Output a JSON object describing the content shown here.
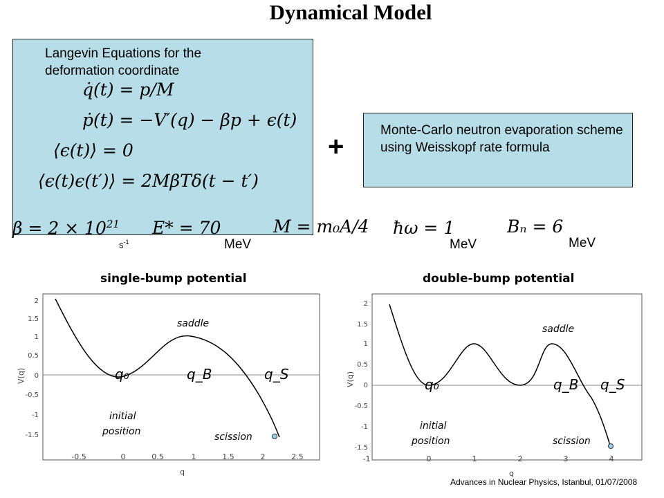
{
  "title": "Dynamical Model",
  "left_box": {
    "heading": "Langevin Equations for the deformation coordinate",
    "equations": [
      "q̇(t) = p/M",
      "ṗ(t) = −V′(q) − βp + ϵ(t)",
      "⟨ϵ(t)⟩ = 0",
      "⟨ϵ(t)ϵ(t′)⟩ = 2MβTδ(t − t′)"
    ]
  },
  "plus": "+",
  "right_box": {
    "text": "Monte-Carlo neutron evaporation scheme using Weisskopf rate formula"
  },
  "parameters": {
    "beta": "β = 2 × 10",
    "beta_exp": "21",
    "beta_unit": "s",
    "beta_unit_exp": "-1",
    "energy": "E* = 70",
    "energy_unit": "MeV",
    "mass": "M = m₀A/4",
    "hbar_omega": "ħω = 1",
    "hbar_omega_unit": "MeV",
    "bn": "Bₙ = 6",
    "bn_unit": "MeV"
  },
  "plots": [
    {
      "title": "single-bump potential",
      "xlabel": "q",
      "ylabel": "V(q)",
      "xticks": [
        "-0.5",
        "0",
        "0.5",
        "1",
        "1.5",
        "2",
        "2.5"
      ],
      "yticks": [
        "2",
        "1.5",
        "1",
        "0.5",
        "0",
        "-0.5",
        "-1",
        "-1.5"
      ],
      "labels": {
        "q0": "q₀",
        "qB": "q_B",
        "qS": "q_S",
        "saddle": "saddle",
        "initial1": "initial",
        "initial2": "position",
        "scission": "scission"
      }
    },
    {
      "title": "double-bump potential",
      "xlabel": "q",
      "ylabel": "V(q)",
      "xticks": [
        "-1",
        "0",
        "1",
        "2",
        "3",
        "4"
      ],
      "yticks": [
        "2",
        "1.5",
        "1",
        "0.5",
        "0",
        "-0.5",
        "-1",
        "-1.5"
      ],
      "labels": {
        "q0": "q₀",
        "qB": "q_B",
        "qS": "q_S",
        "saddle": "saddle",
        "initial1": "initial",
        "initial2": "position",
        "scission": "scission"
      }
    }
  ],
  "footer": "Advances in Nuclear Physics, Istanbul, 01/07/2008",
  "colors": {
    "box": "#b7dde8",
    "curve": "#000000",
    "marker": "#9fd3ea"
  }
}
